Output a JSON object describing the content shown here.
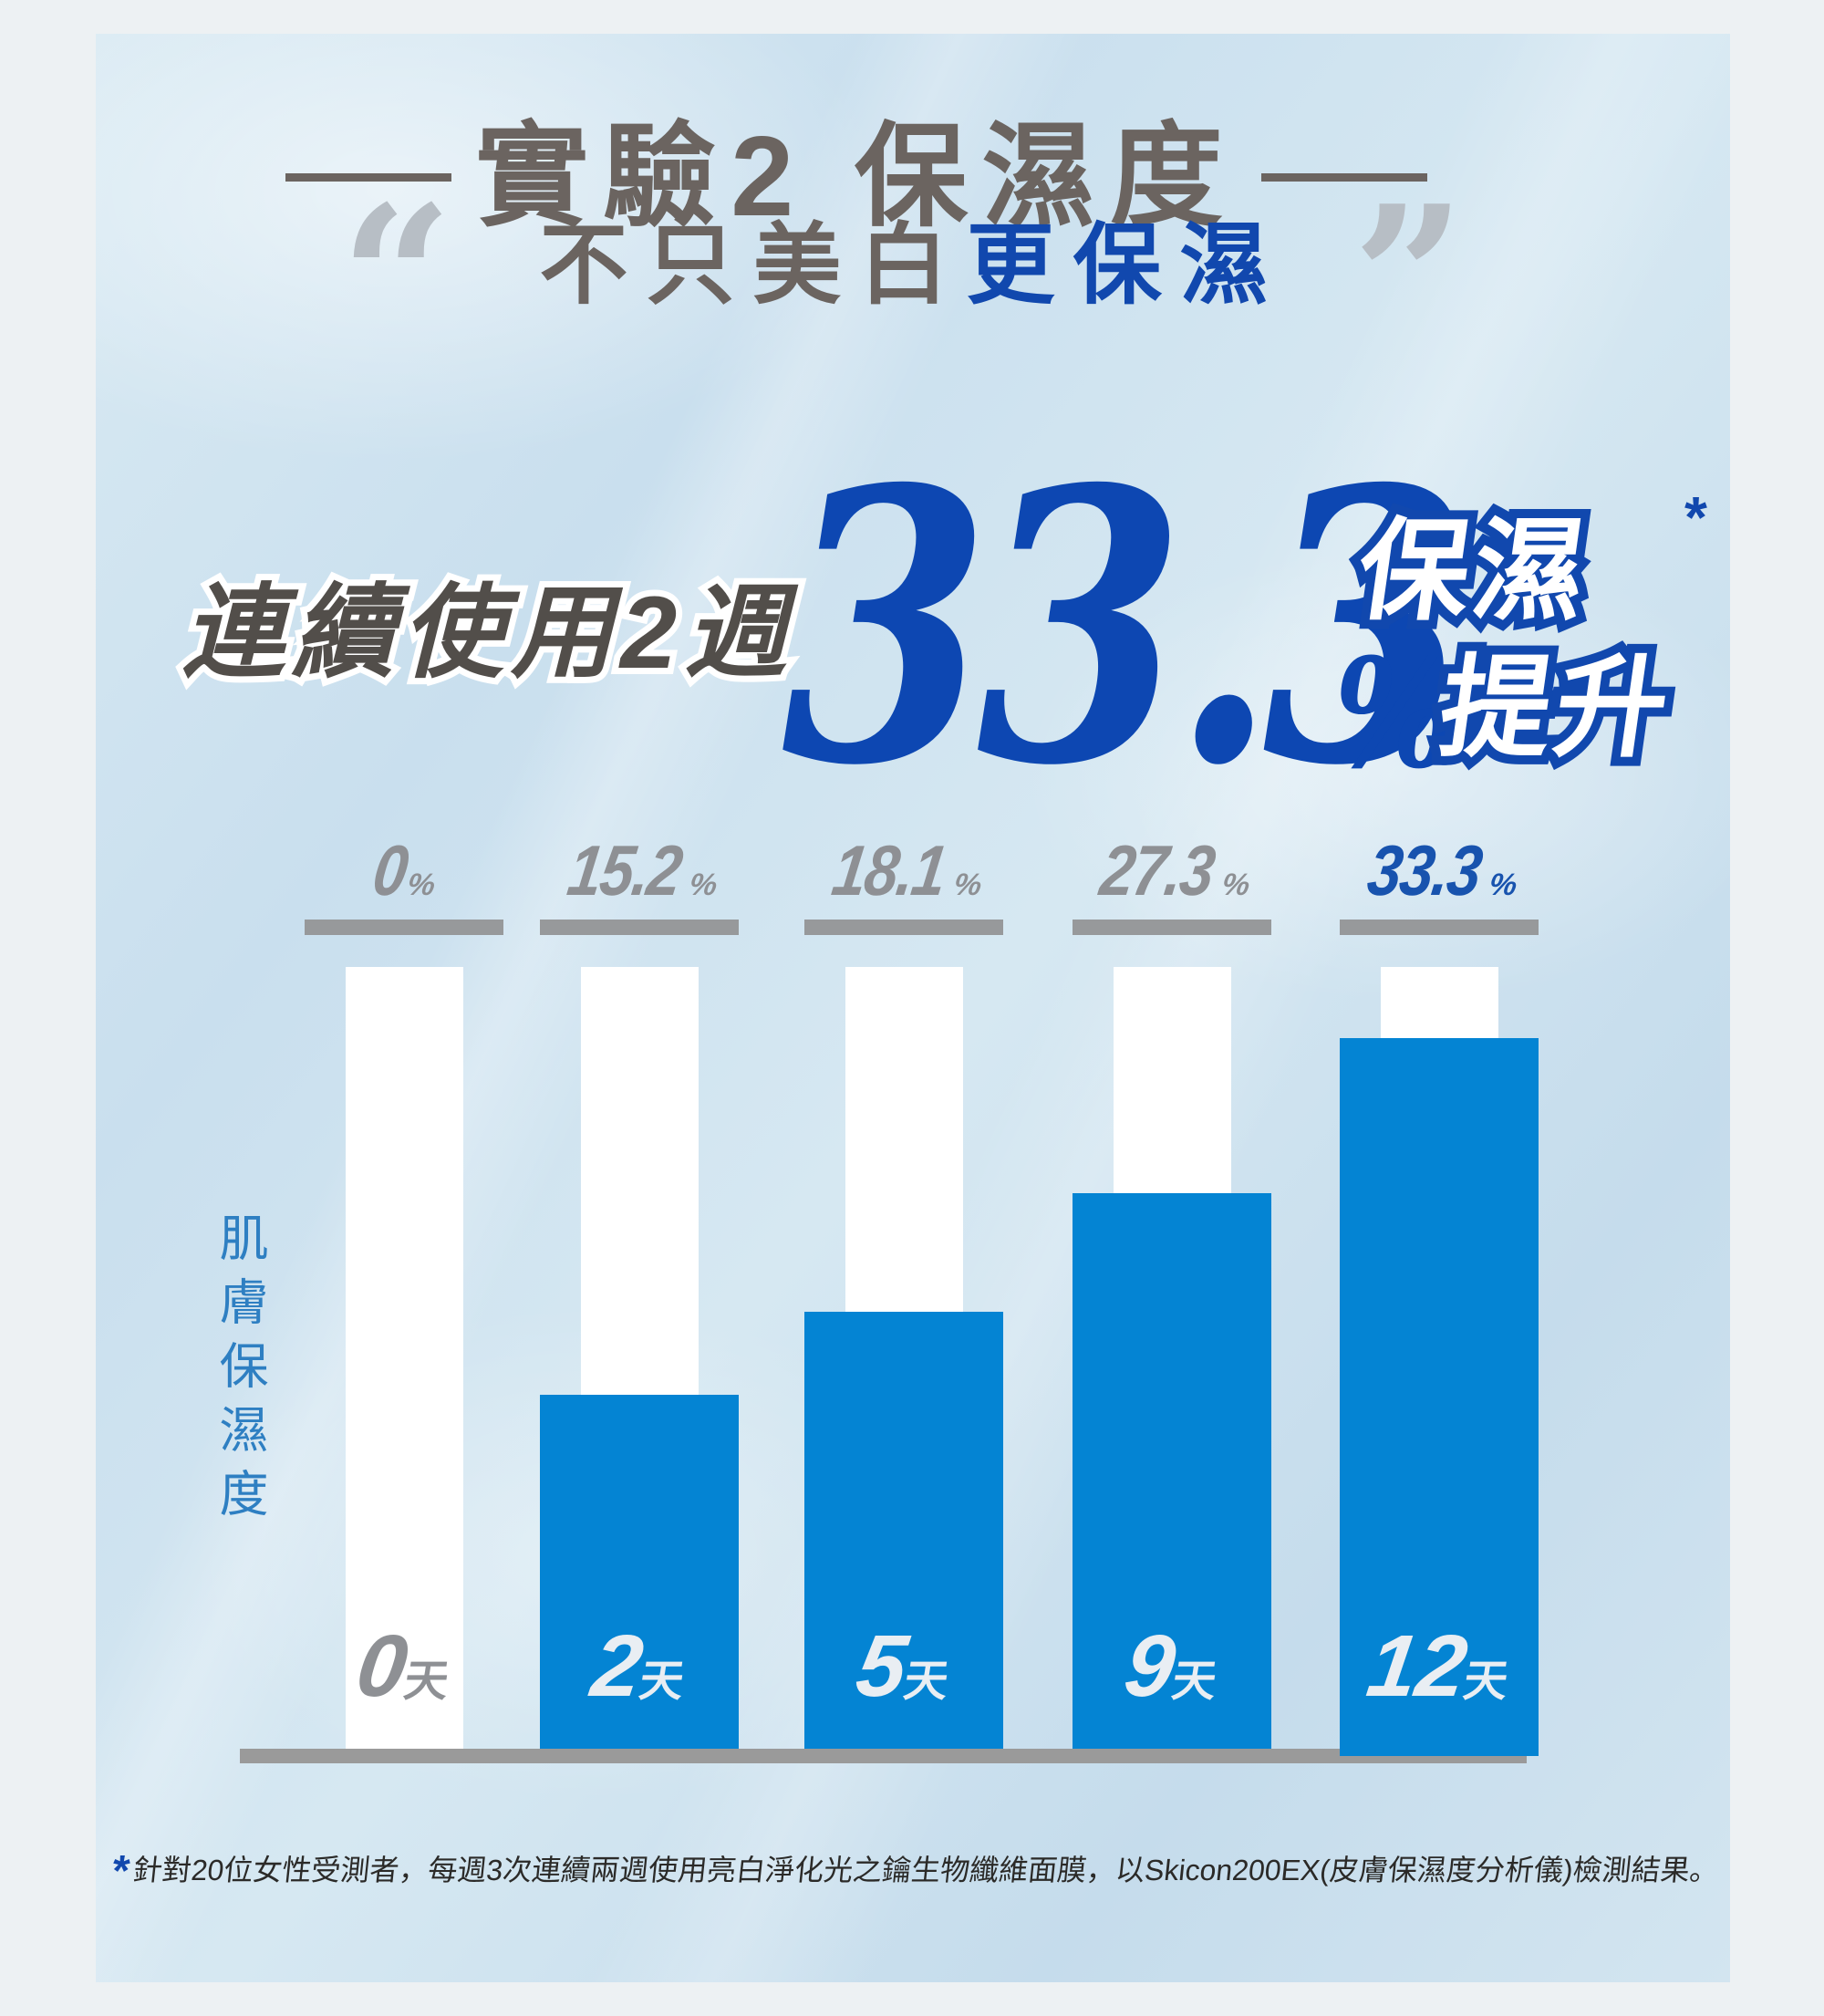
{
  "title": {
    "text": "實驗2 保濕度"
  },
  "subtitle": {
    "normal": "不只美白",
    "accent": "更保濕",
    "open_quote": "“",
    "close_quote": "”"
  },
  "headline": {
    "prefix": "連續使用2週",
    "big_value": "33.3",
    "percent_sign": "%",
    "tag_line1": "保濕",
    "tag_asterisk": "*",
    "tag_line2": "提升"
  },
  "chart_data": {
    "type": "bar",
    "title": "連續使用2週 保濕提升33.3%",
    "ylabel": "肌膚保濕度",
    "xlabel": "",
    "unit": "%",
    "categories": [
      "0天",
      "2天",
      "5天",
      "9天",
      "12天"
    ],
    "values": [
      0,
      15.2,
      18.1,
      27.3,
      33.3
    ],
    "ylim": [
      0,
      35
    ],
    "grid": false,
    "legend": "none",
    "columns": [
      {
        "label_num": "0",
        "label_unit": "天",
        "percent": "0",
        "percent_suffix": "%",
        "value": 0,
        "highlight": false
      },
      {
        "label_num": "2",
        "label_unit": "天",
        "percent": "15.2",
        "percent_suffix": "%",
        "value": 15.2,
        "highlight": false
      },
      {
        "label_num": "5",
        "label_unit": "天",
        "percent": "18.1",
        "percent_suffix": "%",
        "value": 18.1,
        "highlight": false
      },
      {
        "label_num": "9",
        "label_unit": "天",
        "percent": "27.3",
        "percent_suffix": "%",
        "value": 27.3,
        "highlight": false
      },
      {
        "label_num": "12",
        "label_unit": "天",
        "percent": "33.3",
        "percent_suffix": "%",
        "value": 33.3,
        "highlight": true
      }
    ]
  },
  "footnote": {
    "asterisk": "*",
    "text": "針對20位女性受測者，每週3次連續兩週使用亮白淨化光之鑰生物纖維面膜，以Skicon200EX(皮膚保濕度分析儀)檢測結果。"
  },
  "colors": {
    "page_bg": "#edf1f3",
    "card_bg": "#cfe3ef",
    "accent_blue": "#1148ae",
    "number_blue": "#0d47b2",
    "pct_blue": "#1853ae",
    "bar_blue": "#0484d3",
    "grey_dark": "#6b6460",
    "grey_text": "#524e4a",
    "label_grey": "#8e9094",
    "tick_grey": "#97999b",
    "axis_grey": "#9a9a9a",
    "ylabel_blue": "#2e7fc2",
    "quote_grey": "#b7bec5",
    "footnote_dark": "#2b2a28"
  }
}
